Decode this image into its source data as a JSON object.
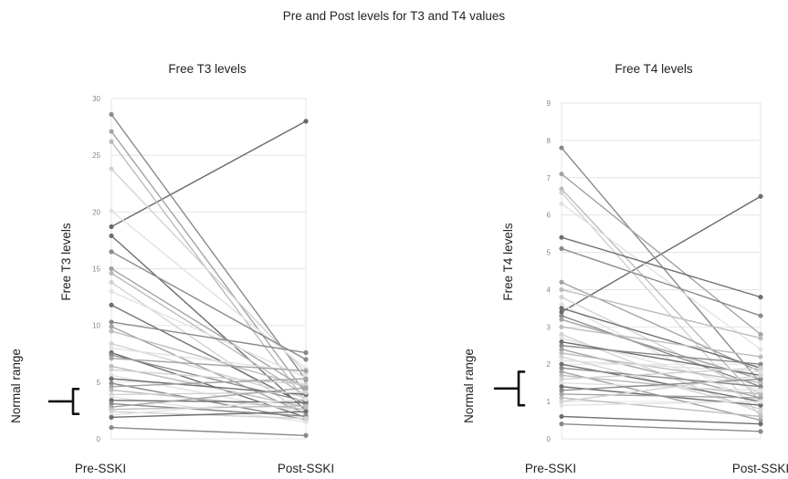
{
  "figure": {
    "title": "Pre and Post levels for T3 and T4 values",
    "colors": {
      "grid": "#e4e4e4",
      "tick_text": "#888888",
      "bracket": "#111111",
      "series_shades": [
        "#6f6f6f",
        "#8a8a8a",
        "#a3a3a3",
        "#bcbcbc",
        "#d2d2d2",
        "#e2e2e2"
      ]
    }
  },
  "chart_data": [
    {
      "type": "line",
      "title": "Free T3 levels",
      "ylabel": "Free T3 levels",
      "xlabel": "",
      "categories": [
        "Pre-SSKI",
        "Post-SSKI"
      ],
      "ylim": [
        0,
        30
      ],
      "yticks": [
        0,
        5,
        10,
        15,
        20,
        25,
        30
      ],
      "grid": true,
      "annotation": {
        "text": "Normal range",
        "range": [
          2.2,
          4.4
        ]
      },
      "pairs": [
        [
          18.7,
          28.0
        ],
        [
          28.6,
          5.2
        ],
        [
          27.1,
          4.0
        ],
        [
          26.2,
          3.3
        ],
        [
          23.8,
          5.8
        ],
        [
          20.1,
          6.2
        ],
        [
          17.9,
          2.5
        ],
        [
          16.5,
          7.0
        ],
        [
          15.0,
          4.4
        ],
        [
          14.6,
          3.8
        ],
        [
          13.8,
          2.1
        ],
        [
          13.0,
          5.4
        ],
        [
          11.8,
          3.0
        ],
        [
          10.3,
          7.6
        ],
        [
          9.9,
          2.2
        ],
        [
          9.5,
          4.6
        ],
        [
          8.4,
          3.6
        ],
        [
          8.0,
          5.9
        ],
        [
          7.6,
          1.9
        ],
        [
          7.4,
          3.3
        ],
        [
          7.1,
          6.0
        ],
        [
          6.4,
          2.8
        ],
        [
          6.1,
          4.8
        ],
        [
          5.6,
          2.3
        ],
        [
          5.3,
          3.9
        ],
        [
          4.9,
          1.7
        ],
        [
          4.6,
          5.3
        ],
        [
          4.3,
          2.6
        ],
        [
          3.9,
          4.1
        ],
        [
          3.7,
          1.5
        ],
        [
          3.4,
          3.2
        ],
        [
          3.1,
          2.0
        ],
        [
          2.8,
          4.5
        ],
        [
          2.6,
          2.9
        ],
        [
          2.4,
          1.8
        ],
        [
          2.1,
          3.5
        ],
        [
          1.9,
          2.4
        ],
        [
          1.0,
          0.3
        ]
      ]
    },
    {
      "type": "line",
      "title": "Free T4 levels",
      "ylabel": "Free T4 levels",
      "xlabel": "",
      "categories": [
        "Pre-SSKI",
        "Post-SSKI"
      ],
      "ylim": [
        0,
        9
      ],
      "yticks": [
        0,
        1,
        2,
        3,
        4,
        5,
        6,
        7,
        8,
        9
      ],
      "grid": true,
      "annotation": {
        "text": "Normal range",
        "range": [
          0.9,
          1.8
        ]
      },
      "pairs": [
        [
          3.4,
          6.5
        ],
        [
          7.8,
          1.5
        ],
        [
          7.1,
          2.8
        ],
        [
          6.7,
          1.0
        ],
        [
          6.6,
          0.6
        ],
        [
          6.3,
          2.4
        ],
        [
          5.4,
          3.8
        ],
        [
          5.1,
          3.3
        ],
        [
          4.2,
          1.8
        ],
        [
          4.0,
          2.7
        ],
        [
          3.8,
          1.2
        ],
        [
          3.6,
          0.9
        ],
        [
          3.5,
          1.9
        ],
        [
          3.3,
          1.4
        ],
        [
          3.2,
          1.6
        ],
        [
          3.0,
          2.2
        ],
        [
          2.8,
          0.7
        ],
        [
          2.7,
          1.3
        ],
        [
          2.6,
          1.7
        ],
        [
          2.5,
          2.0
        ],
        [
          2.4,
          1.1
        ],
        [
          2.3,
          1.5
        ],
        [
          2.2,
          0.8
        ],
        [
          2.1,
          1.8
        ],
        [
          2.0,
          1.0
        ],
        [
          1.9,
          1.4
        ],
        [
          1.8,
          0.5
        ],
        [
          1.7,
          1.2
        ],
        [
          1.6,
          1.9
        ],
        [
          1.5,
          1.3
        ],
        [
          1.4,
          0.9
        ],
        [
          1.3,
          1.6
        ],
        [
          1.2,
          1.1
        ],
        [
          1.1,
          0.6
        ],
        [
          1.0,
          1.7
        ],
        [
          0.9,
          1.0
        ],
        [
          0.6,
          0.4
        ],
        [
          0.4,
          0.2
        ]
      ]
    }
  ]
}
